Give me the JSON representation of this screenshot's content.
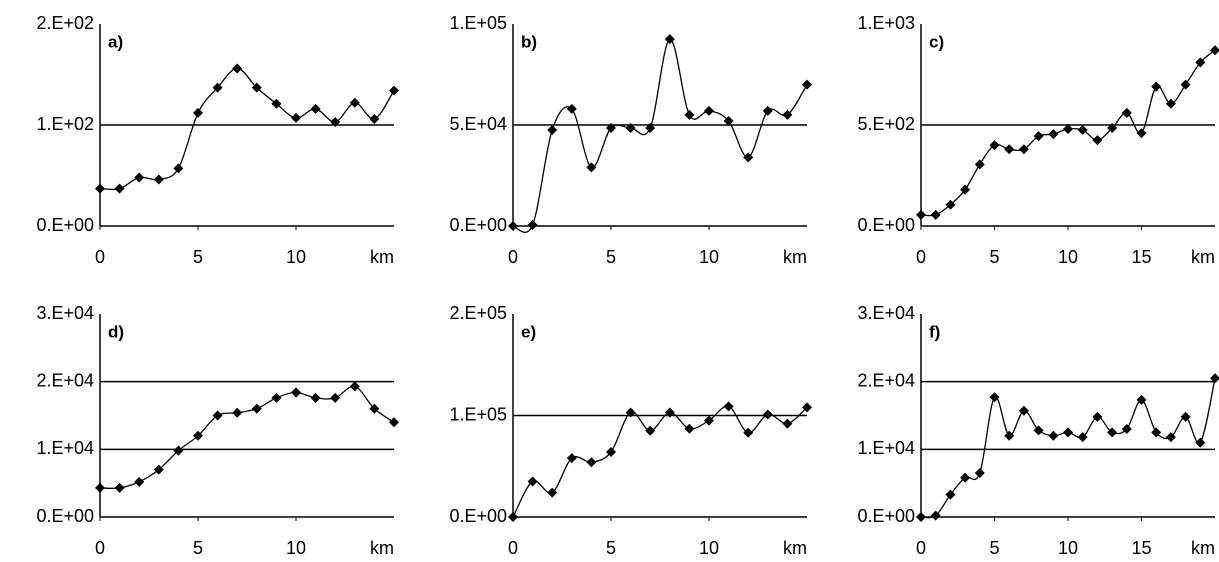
{
  "chart_data": [
    {
      "type": "line",
      "annotation": "a)",
      "xlabel": "km",
      "x": [
        0,
        1,
        2,
        3,
        4,
        5,
        6,
        7,
        8,
        9,
        10,
        11,
        12,
        13,
        14,
        15
      ],
      "series": [
        {
          "color": "#000000",
          "values": [
            37,
            37,
            48,
            46,
            57,
            112,
            137,
            156,
            137,
            121,
            107,
            116,
            103,
            122,
            106,
            134
          ]
        }
      ],
      "xlim": [
        0,
        15
      ],
      "ylim": [
        0,
        200
      ],
      "xticks": [
        0,
        5,
        10
      ],
      "yticks": [
        {
          "value": 0,
          "label": "0.E+00"
        },
        {
          "value": 100,
          "label": "1.E+02"
        },
        {
          "value": 200,
          "label": "2.E+02"
        }
      ],
      "grid": true
    },
    {
      "type": "line",
      "annotation": "b)",
      "xlabel": "km",
      "x": [
        0,
        1,
        2,
        3,
        4,
        5,
        6,
        7,
        8,
        9,
        10,
        11,
        12,
        13,
        14,
        15
      ],
      "series": [
        {
          "color": "#000000",
          "values": [
            0,
            500,
            47500,
            58000,
            29000,
            48500,
            48500,
            48500,
            92500,
            55000,
            57000,
            52000,
            34000,
            57000,
            55000,
            70000
          ]
        }
      ],
      "xlim": [
        0,
        15
      ],
      "ylim": [
        0,
        100000
      ],
      "xticks": [
        0,
        5,
        10
      ],
      "yticks": [
        {
          "value": 0,
          "label": "0.E+00"
        },
        {
          "value": 50000,
          "label": "5.E+04"
        },
        {
          "value": 100000,
          "label": "1.E+05"
        }
      ],
      "grid": true
    },
    {
      "type": "line",
      "annotation": "c)",
      "xlabel": "km",
      "x": [
        0,
        1,
        2,
        3,
        4,
        5,
        6,
        7,
        8,
        9,
        10,
        11,
        12,
        13,
        14,
        15,
        16,
        17,
        18,
        19,
        20
      ],
      "series": [
        {
          "color": "#000000",
          "values": [
            55,
            55,
            105,
            180,
            305,
            400,
            380,
            380,
            445,
            455,
            480,
            475,
            425,
            485,
            560,
            460,
            690,
            605,
            700,
            810,
            870
          ]
        }
      ],
      "xlim": [
        0,
        20
      ],
      "ylim": [
        0,
        1000
      ],
      "xticks": [
        0,
        5,
        10,
        15
      ],
      "yticks": [
        {
          "value": 0,
          "label": "0.E+00"
        },
        {
          "value": 500,
          "label": "5.E+02"
        },
        {
          "value": 1000,
          "label": "1.E+03"
        }
      ],
      "grid": true
    },
    {
      "type": "line",
      "annotation": "d)",
      "xlabel": "km",
      "x": [
        0,
        1,
        2,
        3,
        4,
        5,
        6,
        7,
        8,
        9,
        10,
        11,
        12,
        13,
        14,
        15
      ],
      "series": [
        {
          "color": "#000000",
          "values": [
            4300,
            4300,
            5200,
            7000,
            9800,
            12000,
            15000,
            15400,
            16000,
            17600,
            18400,
            17600,
            17600,
            19300,
            16000,
            14000
          ]
        }
      ],
      "xlim": [
        0,
        15
      ],
      "ylim": [
        0,
        30000
      ],
      "xticks": [
        0,
        5,
        10
      ],
      "yticks": [
        {
          "value": 0,
          "label": "0.E+00"
        },
        {
          "value": 10000,
          "label": "1.E+04"
        },
        {
          "value": 20000,
          "label": "2.E+04"
        },
        {
          "value": 30000,
          "label": "3.E+04"
        }
      ],
      "grid": true
    },
    {
      "type": "line",
      "annotation": "e)",
      "xlabel": "km",
      "x": [
        0,
        1,
        2,
        3,
        4,
        5,
        6,
        7,
        8,
        9,
        10,
        11,
        12,
        13,
        14,
        15
      ],
      "series": [
        {
          "color": "#000000",
          "values": [
            0,
            35000,
            24000,
            58000,
            54000,
            64000,
            103000,
            85000,
            103000,
            87000,
            95000,
            109000,
            83000,
            101000,
            92000,
            108000
          ]
        }
      ],
      "xlim": [
        0,
        15
      ],
      "ylim": [
        0,
        200000
      ],
      "xticks": [
        0,
        5,
        10
      ],
      "yticks": [
        {
          "value": 0,
          "label": "0.E+00"
        },
        {
          "value": 100000,
          "label": "1.E+05"
        },
        {
          "value": 200000,
          "label": "2.E+05"
        }
      ],
      "grid": true
    },
    {
      "type": "line",
      "annotation": "f)",
      "xlabel": "km",
      "x": [
        0,
        1,
        2,
        3,
        4,
        5,
        6,
        7,
        8,
        9,
        10,
        11,
        12,
        13,
        14,
        15,
        16,
        17,
        18,
        19,
        20
      ],
      "series": [
        {
          "color": "#000000",
          "values": [
            0,
            200,
            3300,
            5800,
            6500,
            17700,
            12000,
            15700,
            12800,
            12000,
            12500,
            11800,
            14800,
            12500,
            13000,
            17300,
            12500,
            11800,
            14800,
            11000,
            20500
          ]
        }
      ],
      "xlim": [
        0,
        20
      ],
      "ylim": [
        0,
        30000
      ],
      "xticks": [
        0,
        5,
        10,
        15
      ],
      "yticks": [
        {
          "value": 0,
          "label": "0.E+00"
        },
        {
          "value": 10000,
          "label": "1.E+04"
        },
        {
          "value": 20000,
          "label": "2.E+04"
        },
        {
          "value": 30000,
          "label": "3.E+04"
        }
      ],
      "grid": true
    }
  ]
}
